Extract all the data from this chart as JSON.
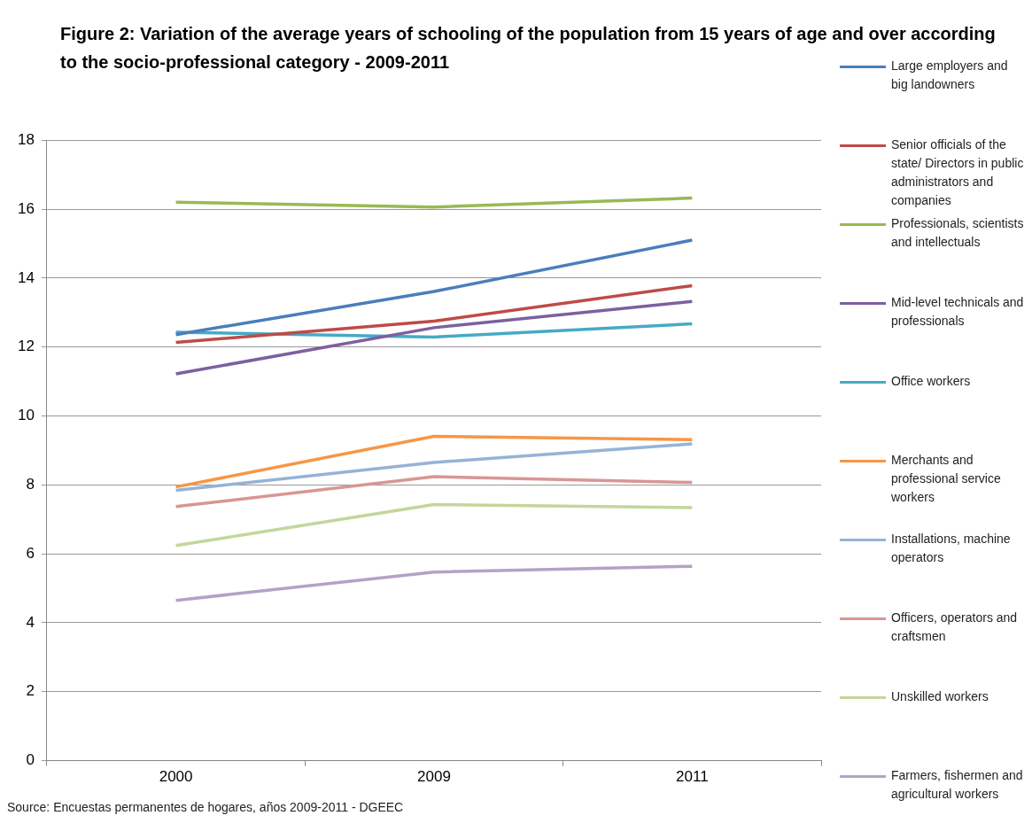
{
  "chart_data": {
    "type": "line",
    "title": "Figure 2: Variation of the average years of schooling of the population  from 15 years of age and over according to the socio-professional category - 2009-2011",
    "categories": [
      "2000",
      "2009",
      "2011"
    ],
    "series": [
      {
        "name": "Large employers and big landowners",
        "color": "#4a7ebb",
        "values": [
          12.36,
          13.61,
          15.1
        ]
      },
      {
        "name": "Senior officials of the state/ Directors in public administrators and companies",
        "color": "#be4b48",
        "values": [
          12.13,
          12.75,
          13.78
        ]
      },
      {
        "name": "Professionals, scientists and intellectuals",
        "color": "#98b954",
        "values": [
          16.2,
          16.06,
          16.32
        ]
      },
      {
        "name": "Mid-level technicals and professionals",
        "color": "#7d60a0",
        "values": [
          11.22,
          12.56,
          13.32
        ]
      },
      {
        "name": "Office workers",
        "color": "#46aac5",
        "values": [
          12.43,
          12.29,
          12.67
        ]
      },
      {
        "name": "Merchants and professional service workers",
        "color": "#f79646",
        "values": [
          7.94,
          9.41,
          9.31
        ]
      },
      {
        "name": "Installations, machine operators",
        "color": "#95b3d7",
        "values": [
          7.84,
          8.65,
          9.19
        ]
      },
      {
        "name": "Officers, operators and craftsmen",
        "color": "#d99694",
        "values": [
          7.37,
          8.24,
          8.07
        ]
      },
      {
        "name": "Unskilled workers",
        "color": "#c3d69b",
        "values": [
          6.24,
          7.43,
          7.34
        ]
      },
      {
        "name": "Farmers, fishermen and agricultural workers",
        "color": "#b3a2c7",
        "values": [
          4.65,
          5.47,
          5.64
        ]
      }
    ],
    "ylim": [
      0,
      18
    ],
    "yticks": [
      0,
      2,
      4,
      6,
      8,
      10,
      12,
      14,
      16,
      18
    ],
    "grid": "y",
    "legend": "right",
    "marker": "none",
    "annotations": [
      "Source: Encuestas permanentes de hogares, años 2009-2011 - DGEEC"
    ]
  }
}
